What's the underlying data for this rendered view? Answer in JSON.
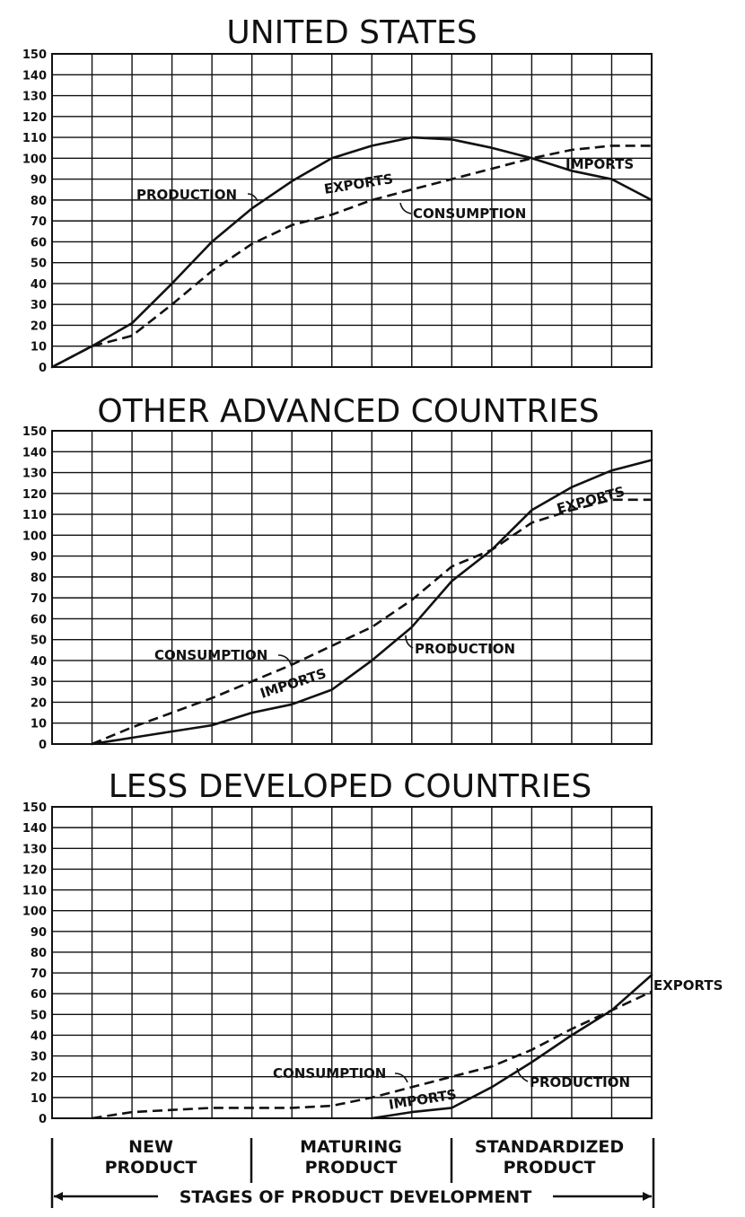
{
  "chart_data": [
    {
      "type": "line",
      "title": "UNITED STATES",
      "xlim": [
        0,
        15
      ],
      "ylim": [
        0,
        150
      ],
      "grid": true,
      "series": [
        {
          "name": "PRODUCTION",
          "style": "solid",
          "x": [
            0,
            1,
            2,
            3,
            4,
            5,
            6,
            7,
            8,
            9,
            10,
            11,
            12,
            13,
            14,
            15
          ],
          "values": [
            0,
            10,
            21,
            40,
            60,
            76,
            89,
            100,
            106,
            110,
            109,
            105,
            100,
            94,
            90,
            80
          ]
        },
        {
          "name": "CONSUMPTION",
          "style": "dashed",
          "x": [
            0,
            1,
            2,
            3,
            4,
            5,
            6,
            7,
            8,
            9,
            10,
            11,
            12,
            13,
            14,
            15
          ],
          "values": [
            0,
            10,
            15,
            30,
            46,
            59,
            68,
            73,
            80,
            85,
            90,
            95,
            100,
            104,
            106,
            106
          ]
        }
      ],
      "annotations": [
        "PRODUCTION",
        "EXPORTS",
        "CONSUMPTION",
        "IMPORTS"
      ]
    },
    {
      "type": "line",
      "title": "OTHER ADVANCED COUNTRIES",
      "xlim": [
        0,
        15
      ],
      "ylim": [
        0,
        150
      ],
      "grid": true,
      "series": [
        {
          "name": "PRODUCTION",
          "style": "solid",
          "x": [
            1,
            2,
            3,
            4,
            5,
            6,
            7,
            8,
            9,
            10,
            11,
            12,
            13,
            14,
            15
          ],
          "values": [
            0,
            3,
            6,
            9,
            15,
            19,
            26,
            40,
            56,
            78,
            93,
            112,
            123,
            131,
            136
          ]
        },
        {
          "name": "CONSUMPTION",
          "style": "dashed",
          "x": [
            1,
            2,
            3,
            4,
            5,
            6,
            7,
            8,
            9,
            10,
            11,
            12,
            13,
            14,
            15
          ],
          "values": [
            0,
            8,
            15,
            22,
            30,
            38,
            47,
            56,
            69,
            85,
            93,
            106,
            112,
            117,
            117
          ]
        }
      ],
      "annotations": [
        "CONSUMPTION",
        "IMPORTS",
        "PRODUCTION",
        "EXPORTS"
      ]
    },
    {
      "type": "line",
      "title": "LESS DEVELOPED COUNTRIES",
      "xlim": [
        0,
        15
      ],
      "ylim": [
        0,
        150
      ],
      "grid": true,
      "series": [
        {
          "name": "PRODUCTION",
          "style": "solid",
          "x": [
            8,
            9,
            10,
            11,
            12,
            13,
            14,
            15
          ],
          "values": [
            0,
            3,
            5,
            15,
            27,
            40,
            52,
            69
          ]
        },
        {
          "name": "CONSUMPTION",
          "style": "dashed",
          "x": [
            1,
            2,
            3,
            4,
            5,
            6,
            7,
            8,
            9,
            10,
            11,
            12,
            13,
            14,
            15
          ],
          "values": [
            0,
            3,
            4,
            5,
            5,
            5,
            6,
            10,
            15,
            20,
            25,
            33,
            43,
            52,
            61
          ]
        }
      ],
      "annotations": [
        "CONSUMPTION",
        "IMPORTS",
        "PRODUCTION",
        "EXPORTS"
      ]
    }
  ],
  "yticks": [
    "0",
    "10",
    "20",
    "30",
    "40",
    "50",
    "60",
    "70",
    "80",
    "90",
    "100",
    "110",
    "120",
    "130",
    "140",
    "150"
  ],
  "stages": {
    "new": [
      "NEW",
      "PRODUCT"
    ],
    "maturing": [
      "MATURING",
      "PRODUCT"
    ],
    "standardized": [
      "STANDARDIZED",
      "PRODUCT"
    ],
    "axis_label": "STAGES OF PRODUCT DEVELOPMENT"
  }
}
